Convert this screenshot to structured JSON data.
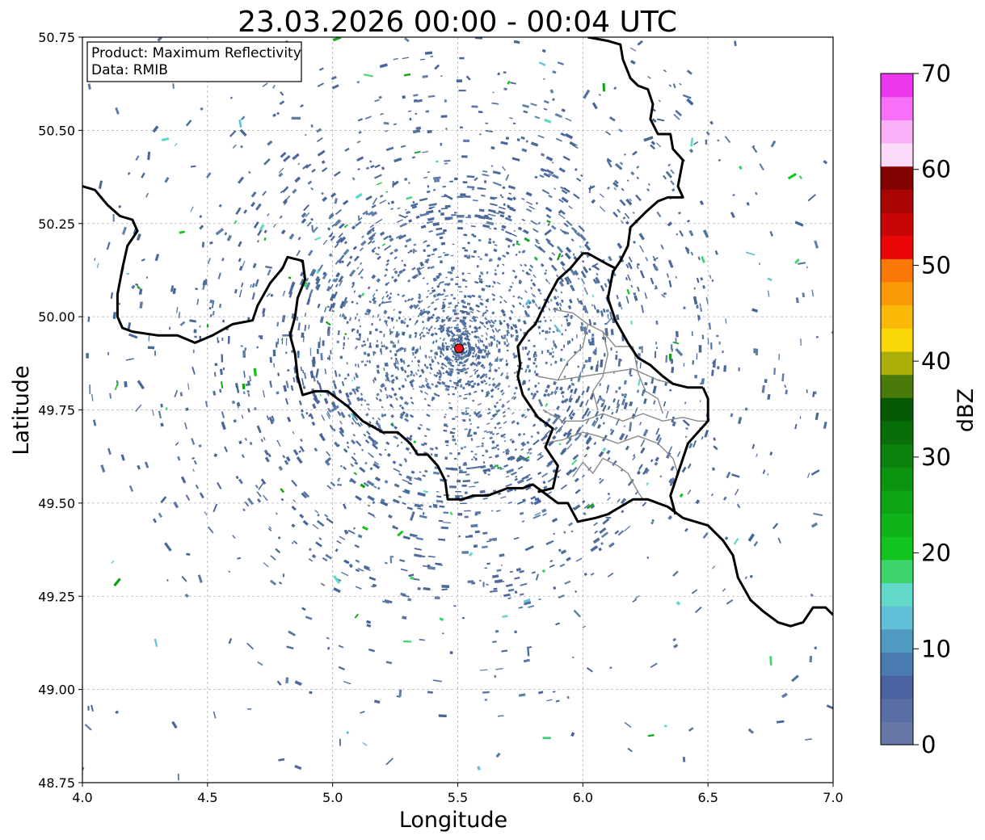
{
  "title": "23.03.2026 00:00 - 00:04 UTC",
  "map": {
    "xlabel": "Longitude",
    "ylabel": "Latitude",
    "xlim": [
      4.0,
      7.0
    ],
    "ylim": [
      48.75,
      50.75
    ],
    "xticks": [
      "4.0",
      "4.5",
      "5.0",
      "5.5",
      "6.0",
      "6.5",
      "7.0"
    ],
    "yticks": [
      "48.75",
      "49.00",
      "49.25",
      "49.50",
      "49.75",
      "50.00",
      "50.25",
      "50.50",
      "50.75"
    ],
    "radar_site": {
      "lon": 5.505,
      "lat": 49.915,
      "color": "#e8141b"
    },
    "legend": {
      "product": "Product: Maximum Reflectivity",
      "data": "Data: RMIB"
    }
  },
  "colorbar": {
    "label": "dBZ",
    "ticks": [
      "0",
      "10",
      "20",
      "30",
      "40",
      "50",
      "60",
      "70"
    ],
    "colors": [
      "#6578a8",
      "#5a6ea6",
      "#4a62a2",
      "#4a7bb0",
      "#5099c0",
      "#62c0d8",
      "#62d8c8",
      "#3ed46e",
      "#12c41e",
      "#10b41a",
      "#0ea414",
      "#0c9410",
      "#0a820c",
      "#086e08",
      "#065a06",
      "#4a7a0a",
      "#aab008",
      "#fad808",
      "#fab808",
      "#fa9a06",
      "#fa7806",
      "#e80606",
      "#c80606",
      "#a80404",
      "#840202",
      "#fadaf8",
      "#fab0f8",
      "#f870f8",
      "#ee38ee"
    ]
  },
  "chart_data": {
    "type": "heatmap",
    "title": "23.03.2026 00:00 - 00:04 UTC",
    "xlabel": "Longitude",
    "ylabel": "Latitude",
    "xlim": [
      4.0,
      7.0
    ],
    "ylim": [
      48.75,
      50.75
    ],
    "value_range_dbz": [
      0,
      70
    ],
    "radar_site": [
      5.505,
      49.915
    ],
    "country_borders": [
      [
        [
          4.0,
          50.35
        ],
        [
          4.05,
          50.34
        ],
        [
          4.1,
          50.3
        ],
        [
          4.15,
          50.27
        ],
        [
          4.2,
          50.26
        ],
        [
          4.22,
          50.23
        ],
        [
          4.18,
          50.19
        ],
        [
          4.16,
          50.13
        ],
        [
          4.14,
          50.06
        ],
        [
          4.14,
          50.0
        ],
        [
          4.16,
          49.97
        ],
        [
          4.2,
          49.96
        ],
        [
          4.3,
          49.95
        ],
        [
          4.38,
          49.95
        ],
        [
          4.45,
          49.93
        ],
        [
          4.52,
          49.95
        ],
        [
          4.6,
          49.98
        ],
        [
          4.68,
          49.99
        ],
        [
          4.7,
          50.03
        ],
        [
          4.75,
          50.09
        ],
        [
          4.8,
          50.13
        ],
        [
          4.82,
          50.16
        ],
        [
          4.88,
          50.15
        ],
        [
          4.89,
          50.1
        ],
        [
          4.86,
          50.05
        ],
        [
          4.85,
          50.0
        ],
        [
          4.83,
          49.95
        ],
        [
          4.85,
          49.9
        ],
        [
          4.86,
          49.84
        ],
        [
          4.88,
          49.79
        ],
        [
          4.93,
          49.8
        ],
        [
          4.98,
          49.8
        ],
        [
          5.06,
          49.76
        ],
        [
          5.12,
          49.72
        ],
        [
          5.2,
          49.69
        ],
        [
          5.26,
          49.69
        ],
        [
          5.31,
          49.66
        ],
        [
          5.34,
          49.63
        ],
        [
          5.38,
          49.63
        ],
        [
          5.42,
          49.6
        ],
        [
          5.45,
          49.56
        ],
        [
          5.46,
          49.51
        ],
        [
          5.52,
          49.51
        ],
        [
          5.56,
          49.52
        ],
        [
          5.62,
          49.52
        ],
        [
          5.7,
          49.54
        ],
        [
          5.76,
          49.54
        ],
        [
          5.8,
          49.55
        ],
        [
          5.84,
          49.53
        ],
        [
          5.9,
          49.5
        ],
        [
          5.94,
          49.5
        ],
        [
          5.98,
          49.45
        ],
        [
          6.05,
          49.46
        ],
        [
          6.1,
          49.47
        ],
        [
          6.2,
          49.51
        ],
        [
          6.26,
          49.51
        ],
        [
          6.34,
          49.49
        ],
        [
          6.4,
          49.46
        ],
        [
          6.45,
          49.45
        ],
        [
          6.5,
          49.44
        ],
        [
          6.56,
          49.4
        ],
        [
          6.6,
          49.36
        ],
        [
          6.62,
          49.3
        ],
        [
          6.67,
          49.24
        ],
        [
          6.72,
          49.21
        ],
        [
          6.78,
          49.18
        ],
        [
          6.83,
          49.17
        ],
        [
          6.88,
          49.18
        ],
        [
          6.92,
          49.22
        ],
        [
          6.97,
          49.22
        ],
        [
          7.0,
          49.2
        ]
      ],
      [
        [
          6.02,
          50.75
        ],
        [
          6.1,
          50.74
        ],
        [
          6.15,
          50.73
        ],
        [
          6.16,
          50.69
        ],
        [
          6.19,
          50.64
        ],
        [
          6.22,
          50.62
        ],
        [
          6.26,
          50.61
        ],
        [
          6.28,
          50.57
        ],
        [
          6.27,
          50.53
        ],
        [
          6.3,
          50.49
        ],
        [
          6.35,
          50.49
        ],
        [
          6.36,
          50.45
        ],
        [
          6.4,
          50.42
        ],
        [
          6.38,
          50.35
        ],
        [
          6.4,
          50.32
        ],
        [
          6.34,
          50.32
        ],
        [
          6.3,
          50.31
        ],
        [
          6.25,
          50.28
        ],
        [
          6.19,
          50.24
        ],
        [
          6.18,
          50.19
        ],
        [
          6.15,
          50.15
        ],
        [
          6.13,
          50.13
        ],
        [
          6.1,
          50.14
        ],
        [
          6.02,
          50.17
        ],
        [
          6.0,
          50.17
        ],
        [
          5.95,
          50.13
        ],
        [
          5.9,
          50.1
        ],
        [
          5.86,
          50.05
        ],
        [
          5.81,
          49.98
        ],
        [
          5.78,
          49.96
        ],
        [
          5.74,
          49.92
        ],
        [
          5.75,
          49.87
        ],
        [
          5.74,
          49.84
        ],
        [
          5.76,
          49.79
        ],
        [
          5.82,
          49.73
        ],
        [
          5.88,
          49.7
        ],
        [
          5.85,
          49.65
        ],
        [
          5.9,
          49.6
        ],
        [
          5.88,
          49.54
        ],
        [
          5.82,
          49.53
        ]
      ],
      [
        [
          6.48,
          49.81
        ],
        [
          6.42,
          49.81
        ],
        [
          6.36,
          49.82
        ],
        [
          6.32,
          49.84
        ],
        [
          6.27,
          49.87
        ],
        [
          6.22,
          49.89
        ],
        [
          6.18,
          49.93
        ],
        [
          6.13,
          49.99
        ],
        [
          6.1,
          50.05
        ],
        [
          6.12,
          50.12
        ],
        [
          6.13,
          50.13
        ]
      ],
      [
        [
          6.48,
          49.81
        ],
        [
          6.5,
          49.78
        ],
        [
          6.5,
          49.72
        ],
        [
          6.42,
          49.66
        ],
        [
          6.38,
          49.58
        ],
        [
          6.35,
          49.52
        ],
        [
          6.37,
          49.47
        ]
      ]
    ],
    "region_borders": [
      [
        [
          5.82,
          49.84
        ],
        [
          5.9,
          49.83
        ],
        [
          6.0,
          49.84
        ],
        [
          6.1,
          49.85
        ],
        [
          6.2,
          49.86
        ],
        [
          6.3,
          49.83
        ],
        [
          6.36,
          49.82
        ]
      ],
      [
        [
          5.84,
          49.75
        ],
        [
          5.92,
          49.72
        ],
        [
          6.0,
          49.72
        ],
        [
          6.08,
          49.74
        ],
        [
          6.16,
          49.72
        ],
        [
          6.24,
          49.74
        ],
        [
          6.32,
          49.72
        ],
        [
          6.4,
          49.73
        ],
        [
          6.46,
          49.72
        ],
        [
          6.5,
          49.72
        ]
      ],
      [
        [
          5.84,
          49.66
        ],
        [
          5.92,
          49.67
        ],
        [
          6.0,
          49.69
        ],
        [
          6.06,
          49.68
        ],
        [
          6.14,
          49.66
        ],
        [
          6.22,
          49.68
        ],
        [
          6.3,
          49.66
        ],
        [
          6.36,
          49.62
        ],
        [
          6.38,
          49.58
        ]
      ],
      [
        [
          5.96,
          49.57
        ],
        [
          6.0,
          49.61
        ],
        [
          6.04,
          49.58
        ],
        [
          6.08,
          49.62
        ],
        [
          6.14,
          49.6
        ],
        [
          6.18,
          49.58
        ],
        [
          6.22,
          49.53
        ],
        [
          6.24,
          49.51
        ]
      ],
      [
        [
          5.88,
          50.02
        ],
        [
          5.96,
          50.01
        ],
        [
          6.02,
          49.98
        ],
        [
          6.08,
          49.96
        ],
        [
          6.13,
          49.92
        ],
        [
          6.2,
          49.92
        ]
      ],
      [
        [
          6.08,
          49.96
        ],
        [
          6.1,
          49.9
        ],
        [
          6.08,
          49.84
        ],
        [
          6.04,
          49.8
        ],
        [
          6.06,
          49.75
        ]
      ],
      [
        [
          6.2,
          49.92
        ],
        [
          6.22,
          49.85
        ],
        [
          6.25,
          49.8
        ],
        [
          6.3,
          49.78
        ],
        [
          6.32,
          49.74
        ]
      ],
      [
        [
          6.02,
          49.98
        ],
        [
          6.0,
          49.92
        ],
        [
          5.94,
          49.88
        ],
        [
          5.9,
          49.83
        ]
      ]
    ]
  }
}
